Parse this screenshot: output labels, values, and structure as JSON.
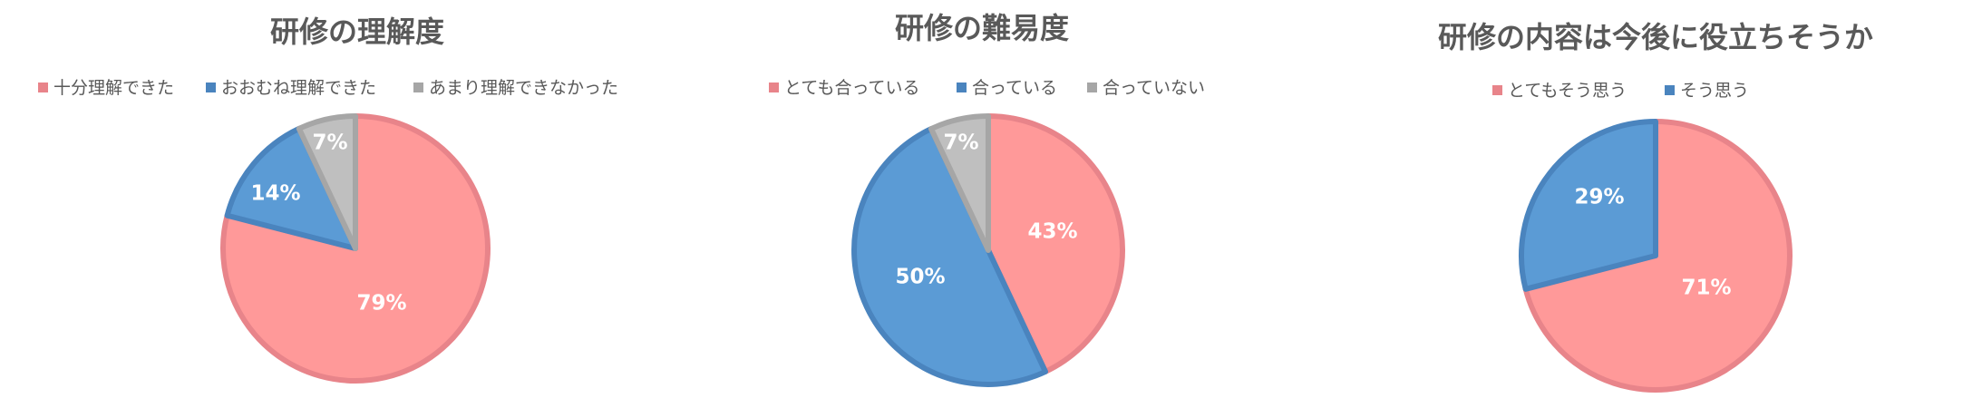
{
  "chart_data": [
    {
      "type": "pie",
      "title": "研修の理解度",
      "categories": [
        "十分理解できた",
        "おおむね理解できた",
        "あまり理解できなかった"
      ],
      "values": [
        79,
        14,
        7
      ],
      "labels": [
        "79%",
        "14%",
        "7%"
      ],
      "colors": [
        "#FF9999",
        "#5B9BD5",
        "#BFBFBF"
      ],
      "edge_colors": [
        "#E8848A",
        "#4A84BE",
        "#A6A6A6"
      ],
      "legend_position": "top"
    },
    {
      "type": "pie",
      "title": "研修の難易度",
      "categories": [
        "とても合っている",
        "合っている",
        "合っていない"
      ],
      "values": [
        43,
        50,
        7
      ],
      "labels": [
        "43%",
        "50%",
        "7%"
      ],
      "colors": [
        "#FF9999",
        "#5B9BD5",
        "#BFBFBF"
      ],
      "edge_colors": [
        "#E8848A",
        "#4A84BE",
        "#A6A6A6"
      ],
      "legend_position": "top"
    },
    {
      "type": "pie",
      "title": "研修の内容は今後に役立ちそうか",
      "categories": [
        "とてもそう思う",
        "そう思う"
      ],
      "values": [
        71,
        29
      ],
      "labels": [
        "71%",
        "29%"
      ],
      "colors": [
        "#FF9999",
        "#5B9BD5"
      ],
      "edge_colors": [
        "#E8848A",
        "#4A84BE"
      ],
      "legend_position": "top"
    }
  ],
  "legend_marker_colors": [
    "#E8848A",
    "#4A84BE",
    "#A6A6A6"
  ]
}
